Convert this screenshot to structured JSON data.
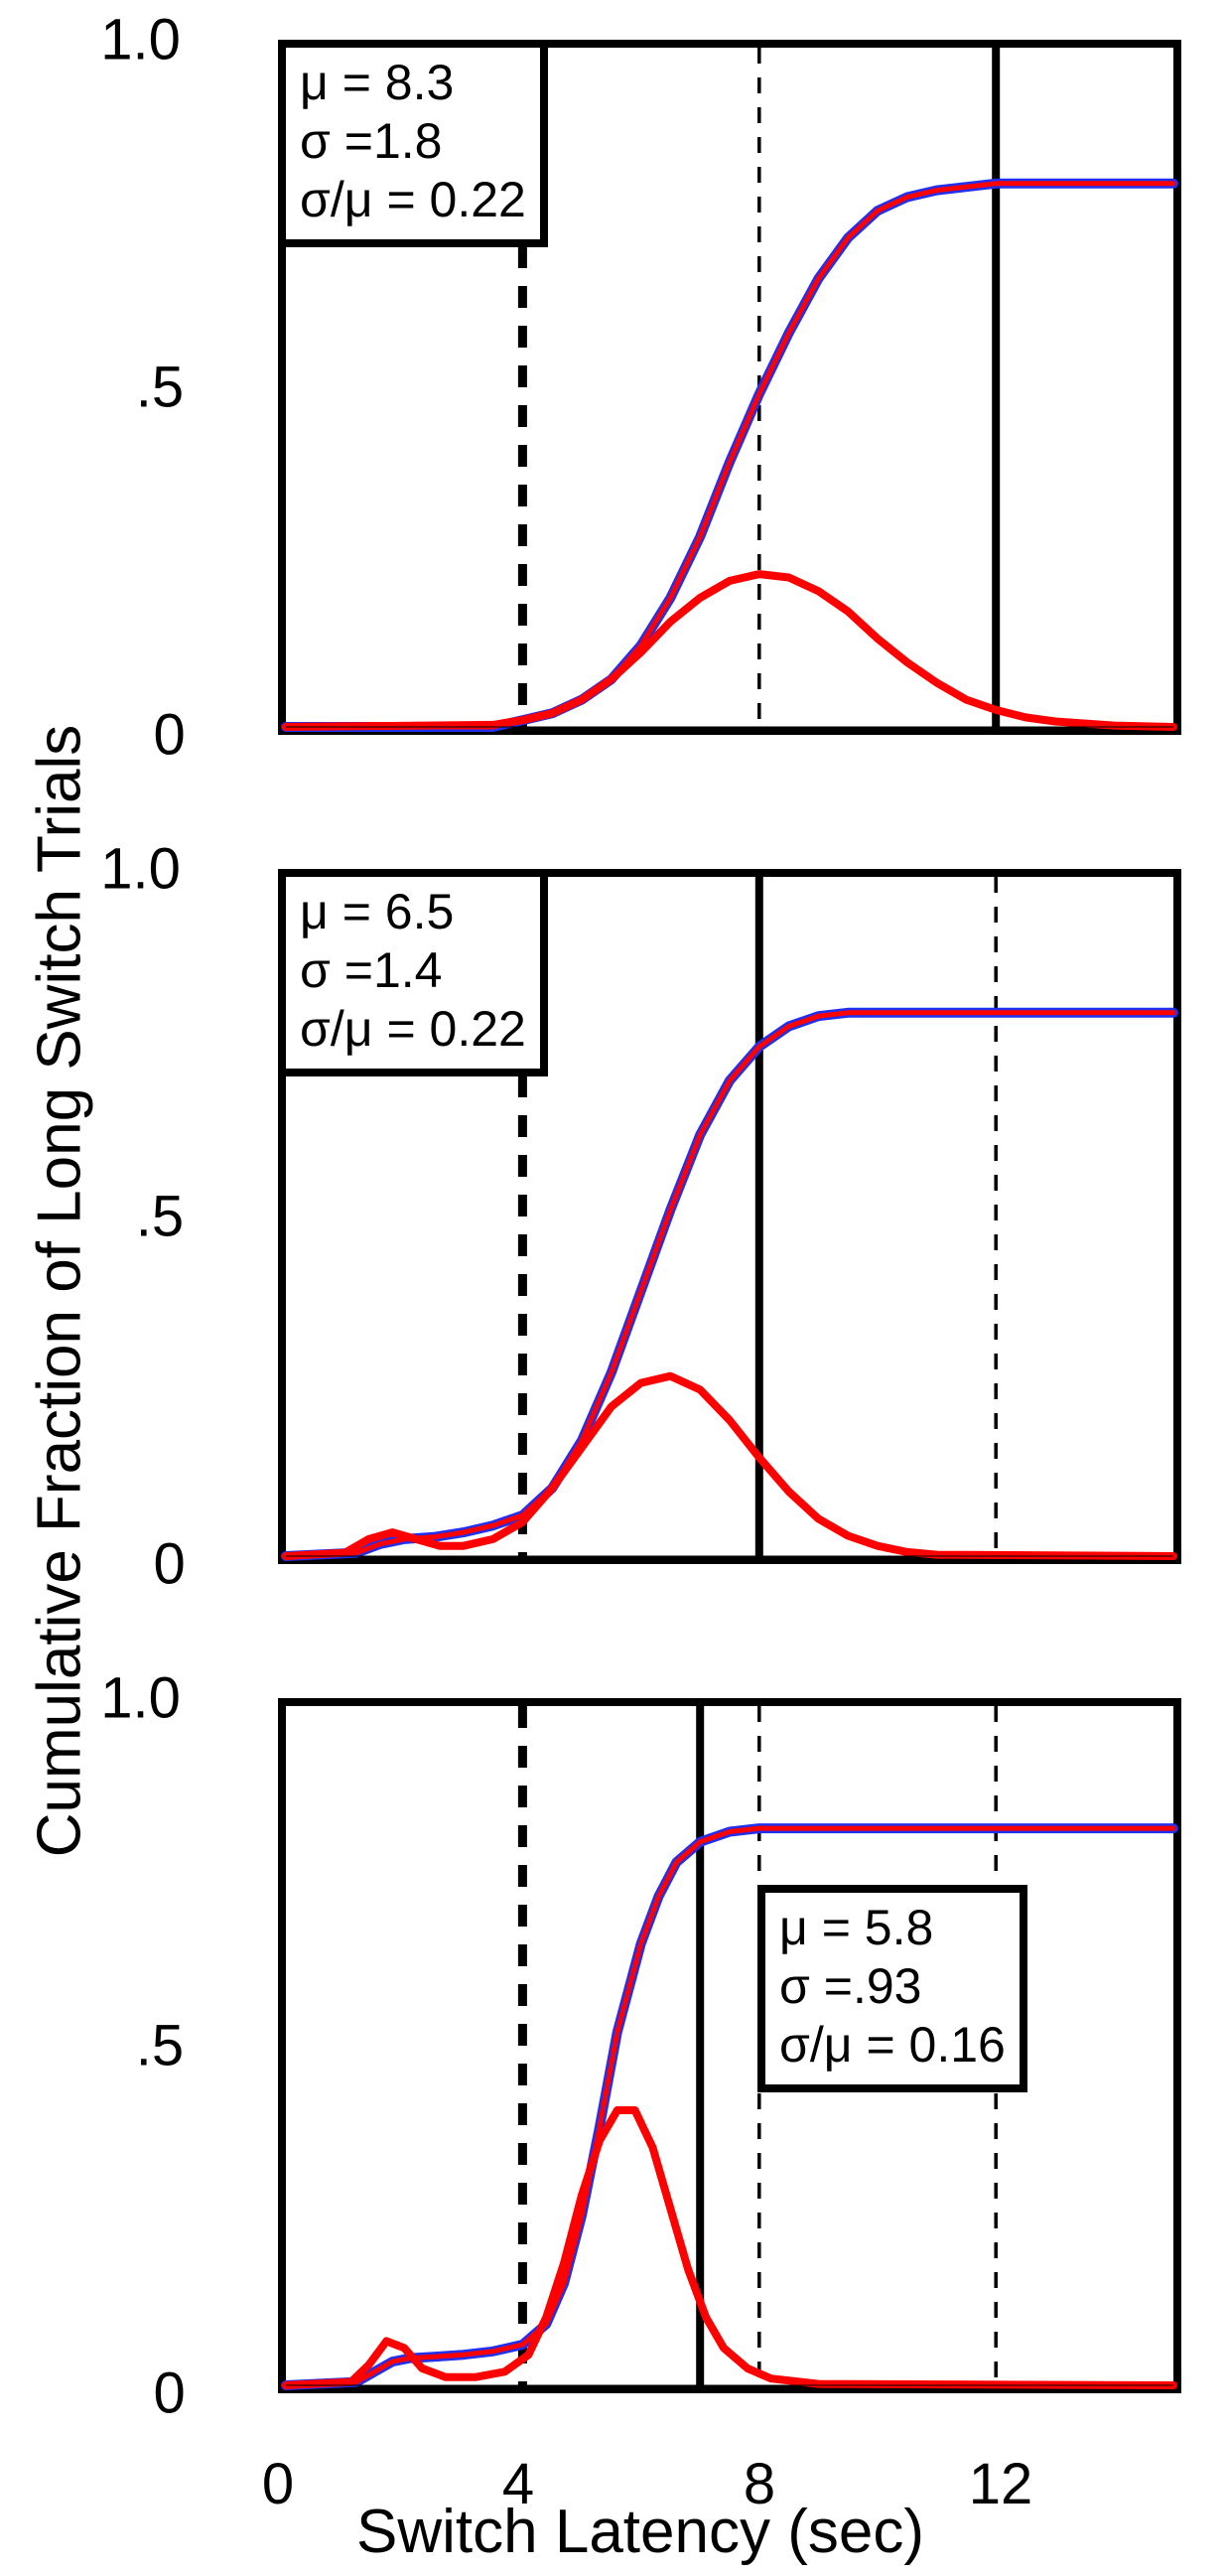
{
  "axis_labels": {
    "y": "Cumulative Fraction of Long Switch Trials",
    "x": "Switch Latency (sec)"
  },
  "global": {
    "xlim": [
      0,
      15
    ],
    "ylim": [
      0,
      1.0
    ],
    "xticks": [
      0,
      4,
      8,
      12
    ],
    "xtick_labels": [
      "0",
      "4",
      "8",
      "12"
    ],
    "yticks": [
      0,
      0.5,
      1.0
    ],
    "ytick_labels": [
      "0",
      ".5",
      "1.0"
    ],
    "dashed_refs": [
      4,
      8,
      12
    ],
    "colors": {
      "data_line": "#2030ee",
      "fit_line": "#ff0000",
      "pdf_line": "#ff0000",
      "ref_dashed": "#000000",
      "solid_marker": "#000000",
      "axis": "#000000"
    },
    "line_widths": {
      "data": 10,
      "fit": 5,
      "pdf": 8,
      "dashed": 3.5,
      "thick_dashed": 9,
      "solid": 8,
      "axis": 8
    },
    "font_sizes": {
      "axis_label": 62,
      "tick": 58,
      "stats": 50
    }
  },
  "panels": [
    {
      "stats": {
        "mu": "8.3",
        "sigma": "1.8",
        "cv": "0.22"
      },
      "stats_pos": "top-left",
      "solid_vline": 12.0,
      "plateau": 0.8,
      "cdf": [
        [
          0,
          0
        ],
        [
          3.5,
          0
        ],
        [
          4,
          0.01
        ],
        [
          4.5,
          0.02
        ],
        [
          5,
          0.04
        ],
        [
          5.5,
          0.07
        ],
        [
          6,
          0.12
        ],
        [
          6.5,
          0.19
        ],
        [
          7,
          0.28
        ],
        [
          7.5,
          0.39
        ],
        [
          8,
          0.49
        ],
        [
          8.5,
          0.58
        ],
        [
          9,
          0.66
        ],
        [
          9.5,
          0.72
        ],
        [
          10,
          0.76
        ],
        [
          10.5,
          0.78
        ],
        [
          11,
          0.79
        ],
        [
          11.5,
          0.795
        ],
        [
          12,
          0.8
        ],
        [
          13,
          0.8
        ],
        [
          15,
          0.8
        ]
      ],
      "pdf": [
        [
          0,
          0
        ],
        [
          3.5,
          0.003
        ],
        [
          4,
          0.01
        ],
        [
          4.5,
          0.02
        ],
        [
          5,
          0.04
        ],
        [
          5.5,
          0.07
        ],
        [
          6,
          0.11
        ],
        [
          6.5,
          0.155
        ],
        [
          7,
          0.19
        ],
        [
          7.5,
          0.215
        ],
        [
          8,
          0.225
        ],
        [
          8.5,
          0.22
        ],
        [
          9,
          0.2
        ],
        [
          9.5,
          0.17
        ],
        [
          10,
          0.13
        ],
        [
          10.5,
          0.095
        ],
        [
          11,
          0.065
        ],
        [
          11.5,
          0.04
        ],
        [
          12,
          0.025
        ],
        [
          12.5,
          0.014
        ],
        [
          13,
          0.008
        ],
        [
          14,
          0.002
        ],
        [
          15,
          0
        ]
      ]
    },
    {
      "stats": {
        "mu": "6.5",
        "sigma": "1.4",
        "cv": "0.22"
      },
      "stats_pos": "top-left",
      "solid_vline": 8.0,
      "plateau": 0.8,
      "cdf": [
        [
          0,
          0
        ],
        [
          1.2,
          0.005
        ],
        [
          1.6,
          0.018
        ],
        [
          2,
          0.025
        ],
        [
          2.5,
          0.028
        ],
        [
          3,
          0.035
        ],
        [
          3.5,
          0.045
        ],
        [
          4,
          0.06
        ],
        [
          4.5,
          0.1
        ],
        [
          5,
          0.17
        ],
        [
          5.5,
          0.27
        ],
        [
          6,
          0.39
        ],
        [
          6.5,
          0.51
        ],
        [
          7,
          0.62
        ],
        [
          7.5,
          0.7
        ],
        [
          8,
          0.75
        ],
        [
          8.5,
          0.78
        ],
        [
          9,
          0.795
        ],
        [
          9.5,
          0.8
        ],
        [
          10,
          0.8
        ],
        [
          15,
          0.8
        ]
      ],
      "pdf": [
        [
          0,
          0
        ],
        [
          1.0,
          0.005
        ],
        [
          1.4,
          0.025
        ],
        [
          1.8,
          0.035
        ],
        [
          2.2,
          0.025
        ],
        [
          2.6,
          0.015
        ],
        [
          3.0,
          0.015
        ],
        [
          3.5,
          0.025
        ],
        [
          4,
          0.05
        ],
        [
          4.5,
          0.1
        ],
        [
          5,
          0.16
        ],
        [
          5.5,
          0.22
        ],
        [
          6,
          0.255
        ],
        [
          6.5,
          0.265
        ],
        [
          7,
          0.245
        ],
        [
          7.5,
          0.2
        ],
        [
          8,
          0.145
        ],
        [
          8.5,
          0.095
        ],
        [
          9,
          0.055
        ],
        [
          9.5,
          0.03
        ],
        [
          10,
          0.015
        ],
        [
          10.5,
          0.006
        ],
        [
          11,
          0.002
        ],
        [
          15,
          0
        ]
      ]
    },
    {
      "stats": {
        "mu": "5.8",
        "sigma": ".93",
        "cv": "0.16"
      },
      "stats_pos": "right",
      "solid_vline": 7.0,
      "plateau": 0.82,
      "cdf": [
        [
          0,
          0
        ],
        [
          1.2,
          0.005
        ],
        [
          1.5,
          0.02
        ],
        [
          1.8,
          0.035
        ],
        [
          2.1,
          0.04
        ],
        [
          2.5,
          0.042
        ],
        [
          3,
          0.045
        ],
        [
          3.5,
          0.05
        ],
        [
          4,
          0.06
        ],
        [
          4.4,
          0.09
        ],
        [
          4.7,
          0.15
        ],
        [
          5,
          0.25
        ],
        [
          5.3,
          0.38
        ],
        [
          5.6,
          0.52
        ],
        [
          6,
          0.65
        ],
        [
          6.3,
          0.72
        ],
        [
          6.6,
          0.77
        ],
        [
          7,
          0.8
        ],
        [
          7.5,
          0.815
        ],
        [
          8,
          0.82
        ],
        [
          9,
          0.82
        ],
        [
          15,
          0.82
        ]
      ],
      "pdf": [
        [
          0,
          0
        ],
        [
          1.1,
          0.005
        ],
        [
          1.4,
          0.03
        ],
        [
          1.7,
          0.065
        ],
        [
          2.0,
          0.055
        ],
        [
          2.3,
          0.025
        ],
        [
          2.7,
          0.012
        ],
        [
          3.2,
          0.012
        ],
        [
          3.7,
          0.02
        ],
        [
          4.1,
          0.045
        ],
        [
          4.4,
          0.1
        ],
        [
          4.7,
          0.18
        ],
        [
          5.0,
          0.28
        ],
        [
          5.3,
          0.36
        ],
        [
          5.6,
          0.405
        ],
        [
          5.9,
          0.405
        ],
        [
          6.2,
          0.35
        ],
        [
          6.5,
          0.26
        ],
        [
          6.8,
          0.17
        ],
        [
          7.1,
          0.1
        ],
        [
          7.4,
          0.055
        ],
        [
          7.8,
          0.025
        ],
        [
          8.2,
          0.01
        ],
        [
          9,
          0.002
        ],
        [
          15,
          0
        ]
      ]
    }
  ]
}
